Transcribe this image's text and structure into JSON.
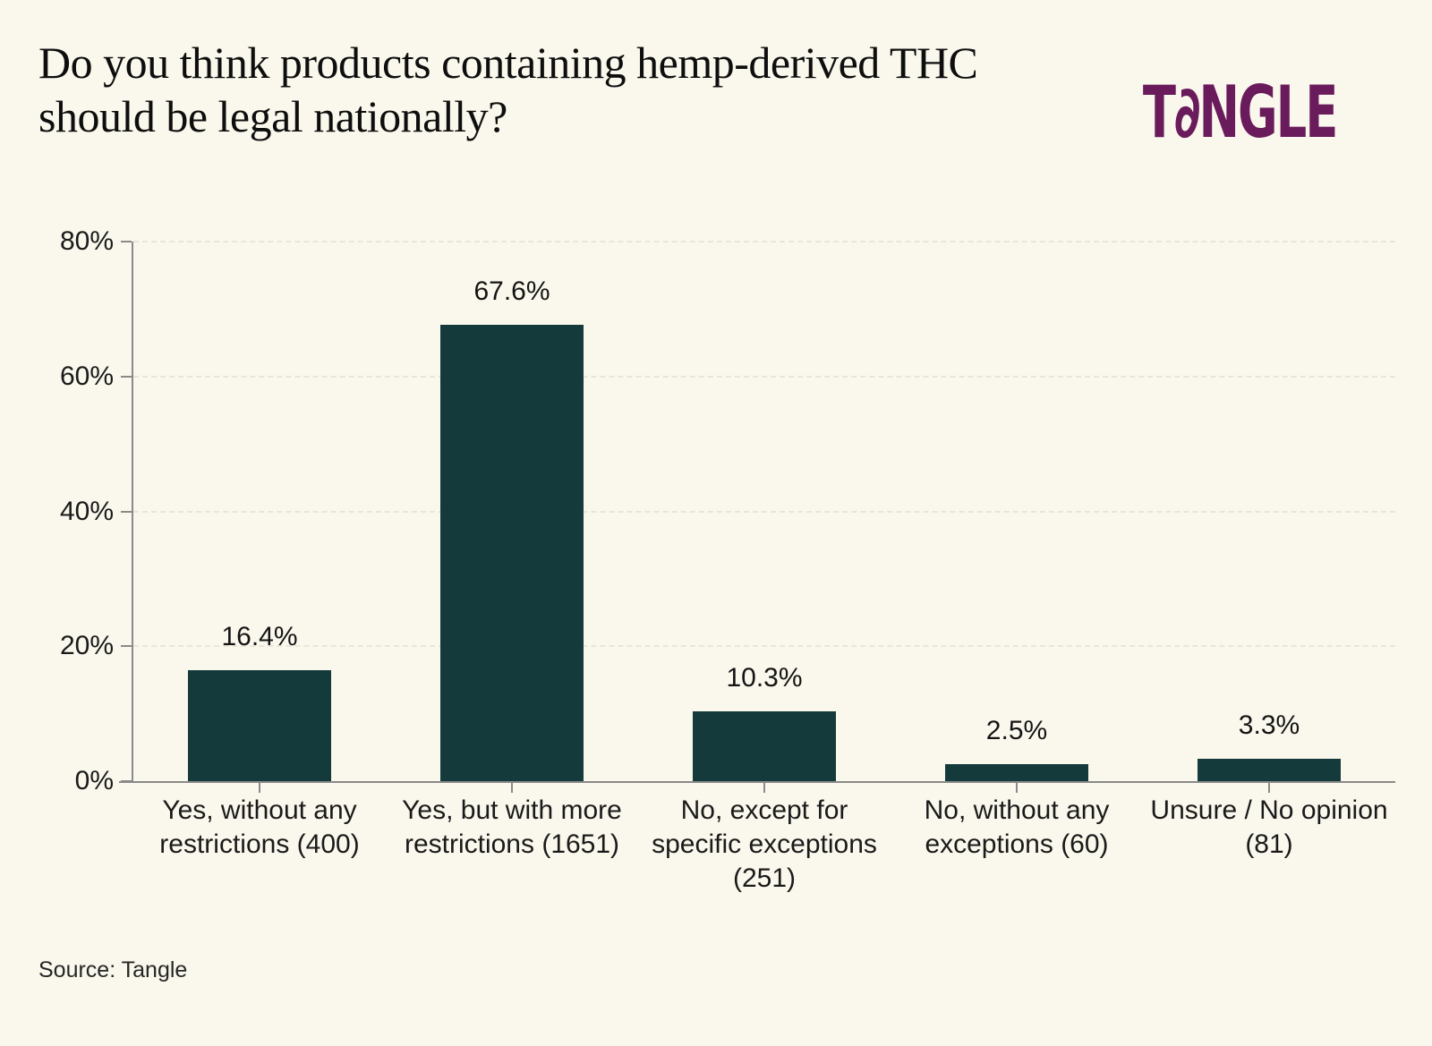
{
  "title": "Do you think products containing hemp-derived THC should be legal nationally?",
  "brand": {
    "name": "Tangle",
    "display": "T∂NGLE",
    "color": "#6A1B5C"
  },
  "source": "Source: Tangle",
  "colors": {
    "background": "#FAF8EC",
    "bar": "#153A3C",
    "axis": "#8A8A8A",
    "gridline": "#E9E6D8",
    "text": "#1A1A1A"
  },
  "chart_data": {
    "type": "bar",
    "title": "Do you think products containing hemp-derived THC should be legal nationally?",
    "categories": [
      "Yes, without any restrictions (400)",
      "Yes, but with more restrictions (1651)",
      "No, except for specific exceptions (251)",
      "No, without any exceptions (60)",
      "Unsure / No opinion (81)"
    ],
    "values": [
      16.4,
      67.6,
      10.3,
      2.5,
      3.3
    ],
    "counts": [
      400,
      1651,
      251,
      60,
      81
    ],
    "value_labels": [
      "16.4%",
      "67.6%",
      "10.3%",
      "2.5%",
      "3.3%"
    ],
    "xlabel": "",
    "ylabel": "",
    "ylim": [
      0,
      80
    ],
    "y_ticks": [
      0,
      20,
      40,
      60,
      80
    ],
    "y_tick_labels": [
      "0%",
      "20%",
      "40%",
      "60%",
      "80%"
    ],
    "grid": true,
    "legend": false,
    "bar_color": "#153A3C"
  }
}
